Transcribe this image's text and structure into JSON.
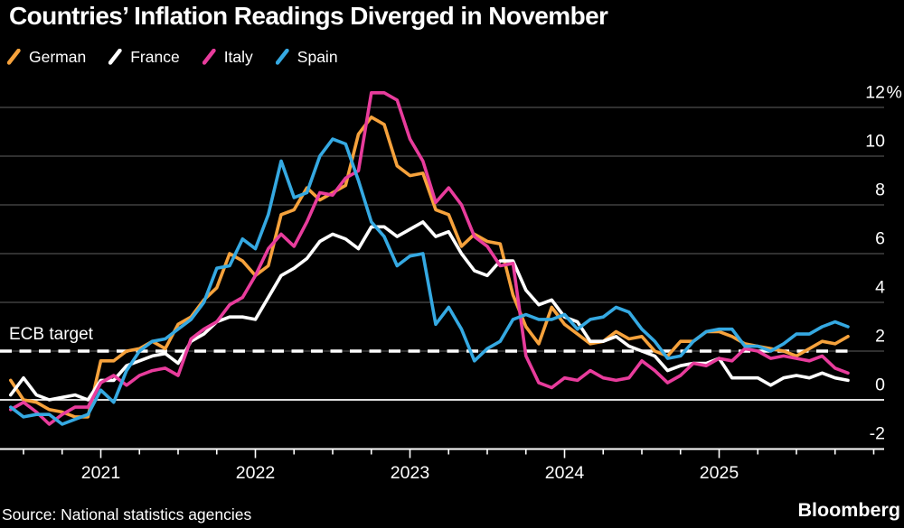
{
  "title": "Countries’ Inflation Readings Diverged in November",
  "ecb_target_label": "ECB target",
  "source": "Source: National statistics agencies",
  "brand": "Bloomberg",
  "colors": {
    "background": "#000000",
    "grid": "#4E4E4E",
    "axis": "#FFFFFF",
    "zero_line": "#FFFFFF",
    "target_line": "#FFFFFF",
    "text": "#FFFFFF"
  },
  "chart_data": {
    "type": "line",
    "title": "Countries’ Inflation Readings Diverged in November",
    "x_unit": "monthly",
    "x_range": [
      "2020-06",
      "2025-11"
    ],
    "x_tick_labels": [
      "2021",
      "2022",
      "2023",
      "2024",
      "2025"
    ],
    "y_ticks": [
      12,
      10,
      8,
      6,
      4,
      2,
      0,
      -2
    ],
    "y_tick_labels": [
      "12%",
      "10",
      "8",
      "6",
      "4",
      "2",
      "0",
      "-2"
    ],
    "ylim": [
      -2,
      13
    ],
    "grid": true,
    "legend_position": "top-left",
    "target_value": 2,
    "target_label": "ECB target",
    "series": [
      {
        "name": "German",
        "color": "#F6A23C",
        "values": [
          0.8,
          0.0,
          -0.1,
          -0.4,
          -0.5,
          -0.7,
          -0.7,
          1.6,
          1.6,
          2.0,
          2.1,
          2.4,
          2.1,
          3.1,
          3.4,
          4.1,
          4.6,
          6.0,
          5.7,
          5.1,
          5.5,
          7.6,
          7.8,
          8.7,
          8.2,
          8.5,
          8.8,
          10.9,
          11.6,
          11.3,
          9.6,
          9.2,
          9.3,
          7.8,
          7.6,
          6.3,
          6.8,
          6.5,
          6.4,
          4.3,
          3.0,
          2.3,
          3.8,
          3.1,
          2.7,
          2.3,
          2.4,
          2.8,
          2.5,
          2.6,
          2.0,
          1.8,
          2.4,
          2.4,
          2.8,
          2.8,
          2.6,
          2.3,
          2.2,
          2.1,
          2.0,
          1.8,
          2.1,
          2.4,
          2.3,
          2.6
        ]
      },
      {
        "name": "France",
        "color": "#FFFFFF",
        "values": [
          0.2,
          0.9,
          0.2,
          0.0,
          0.1,
          0.2,
          0.0,
          0.8,
          0.8,
          1.4,
          1.6,
          1.8,
          1.9,
          1.5,
          2.4,
          2.7,
          3.2,
          3.4,
          3.4,
          3.3,
          4.2,
          5.1,
          5.4,
          5.8,
          6.5,
          6.8,
          6.6,
          6.2,
          7.1,
          7.1,
          6.7,
          7.0,
          7.3,
          6.7,
          6.9,
          6.0,
          5.3,
          5.1,
          5.7,
          5.7,
          4.5,
          3.9,
          4.1,
          3.4,
          3.2,
          2.4,
          2.4,
          2.6,
          2.2,
          2.0,
          1.8,
          1.2,
          1.4,
          1.5,
          1.5,
          1.7,
          0.9,
          0.9,
          0.9,
          0.6,
          0.9,
          1.0,
          0.9,
          1.1,
          0.9,
          0.8
        ]
      },
      {
        "name": "Italy",
        "color": "#E83C9C",
        "values": [
          -0.4,
          -0.1,
          -0.5,
          -1.0,
          -0.6,
          -0.3,
          -0.3,
          0.7,
          1.0,
          0.6,
          1.0,
          1.2,
          1.3,
          1.0,
          2.5,
          2.9,
          3.2,
          3.9,
          4.2,
          5.1,
          6.2,
          6.8,
          6.3,
          7.3,
          8.5,
          8.4,
          9.1,
          9.4,
          12.6,
          12.6,
          12.3,
          10.7,
          9.8,
          8.1,
          8.7,
          8.0,
          6.7,
          6.3,
          5.5,
          5.6,
          1.8,
          0.7,
          0.5,
          0.9,
          0.8,
          1.2,
          0.9,
          0.8,
          0.9,
          1.6,
          1.2,
          0.7,
          1.0,
          1.5,
          1.4,
          1.7,
          1.6,
          2.1,
          2.0,
          1.7,
          1.8,
          1.7,
          1.6,
          1.8,
          1.3,
          1.1
        ]
      },
      {
        "name": "Spain",
        "color": "#35A9E2",
        "values": [
          -0.3,
          -0.7,
          -0.6,
          -0.6,
          -1.0,
          -0.8,
          -0.6,
          0.4,
          -0.1,
          1.2,
          2.0,
          2.4,
          2.5,
          2.9,
          3.3,
          4.0,
          5.4,
          5.5,
          6.6,
          6.2,
          7.6,
          9.8,
          8.3,
          8.5,
          10.0,
          10.7,
          10.5,
          9.0,
          7.3,
          6.7,
          5.5,
          5.9,
          6.0,
          3.1,
          3.8,
          2.9,
          1.6,
          2.1,
          2.4,
          3.3,
          3.5,
          3.3,
          3.3,
          3.5,
          2.9,
          3.3,
          3.4,
          3.8,
          3.6,
          2.9,
          2.4,
          1.7,
          1.8,
          2.4,
          2.8,
          2.9,
          2.9,
          2.2,
          2.2,
          2.0,
          2.3,
          2.7,
          2.7,
          3.0,
          3.2,
          3.0
        ]
      }
    ]
  }
}
